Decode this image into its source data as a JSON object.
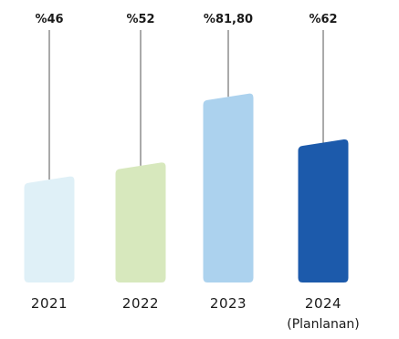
{
  "chart_data": {
    "type": "bar",
    "categories": [
      "2021",
      "2022",
      "2023",
      "2024"
    ],
    "category_sublabels": [
      "",
      "",
      "",
      "(Planlanan)"
    ],
    "values": [
      46,
      52,
      81.8,
      62
    ],
    "value_labels": [
      "%46",
      "%52",
      "%81,80",
      "%62"
    ],
    "bar_colors": [
      "#dff0f7",
      "#d7e8bd",
      "#acd2ee",
      "#1c5aab"
    ],
    "leader_line_color": "#555555",
    "grid": false,
    "legend": "none"
  }
}
